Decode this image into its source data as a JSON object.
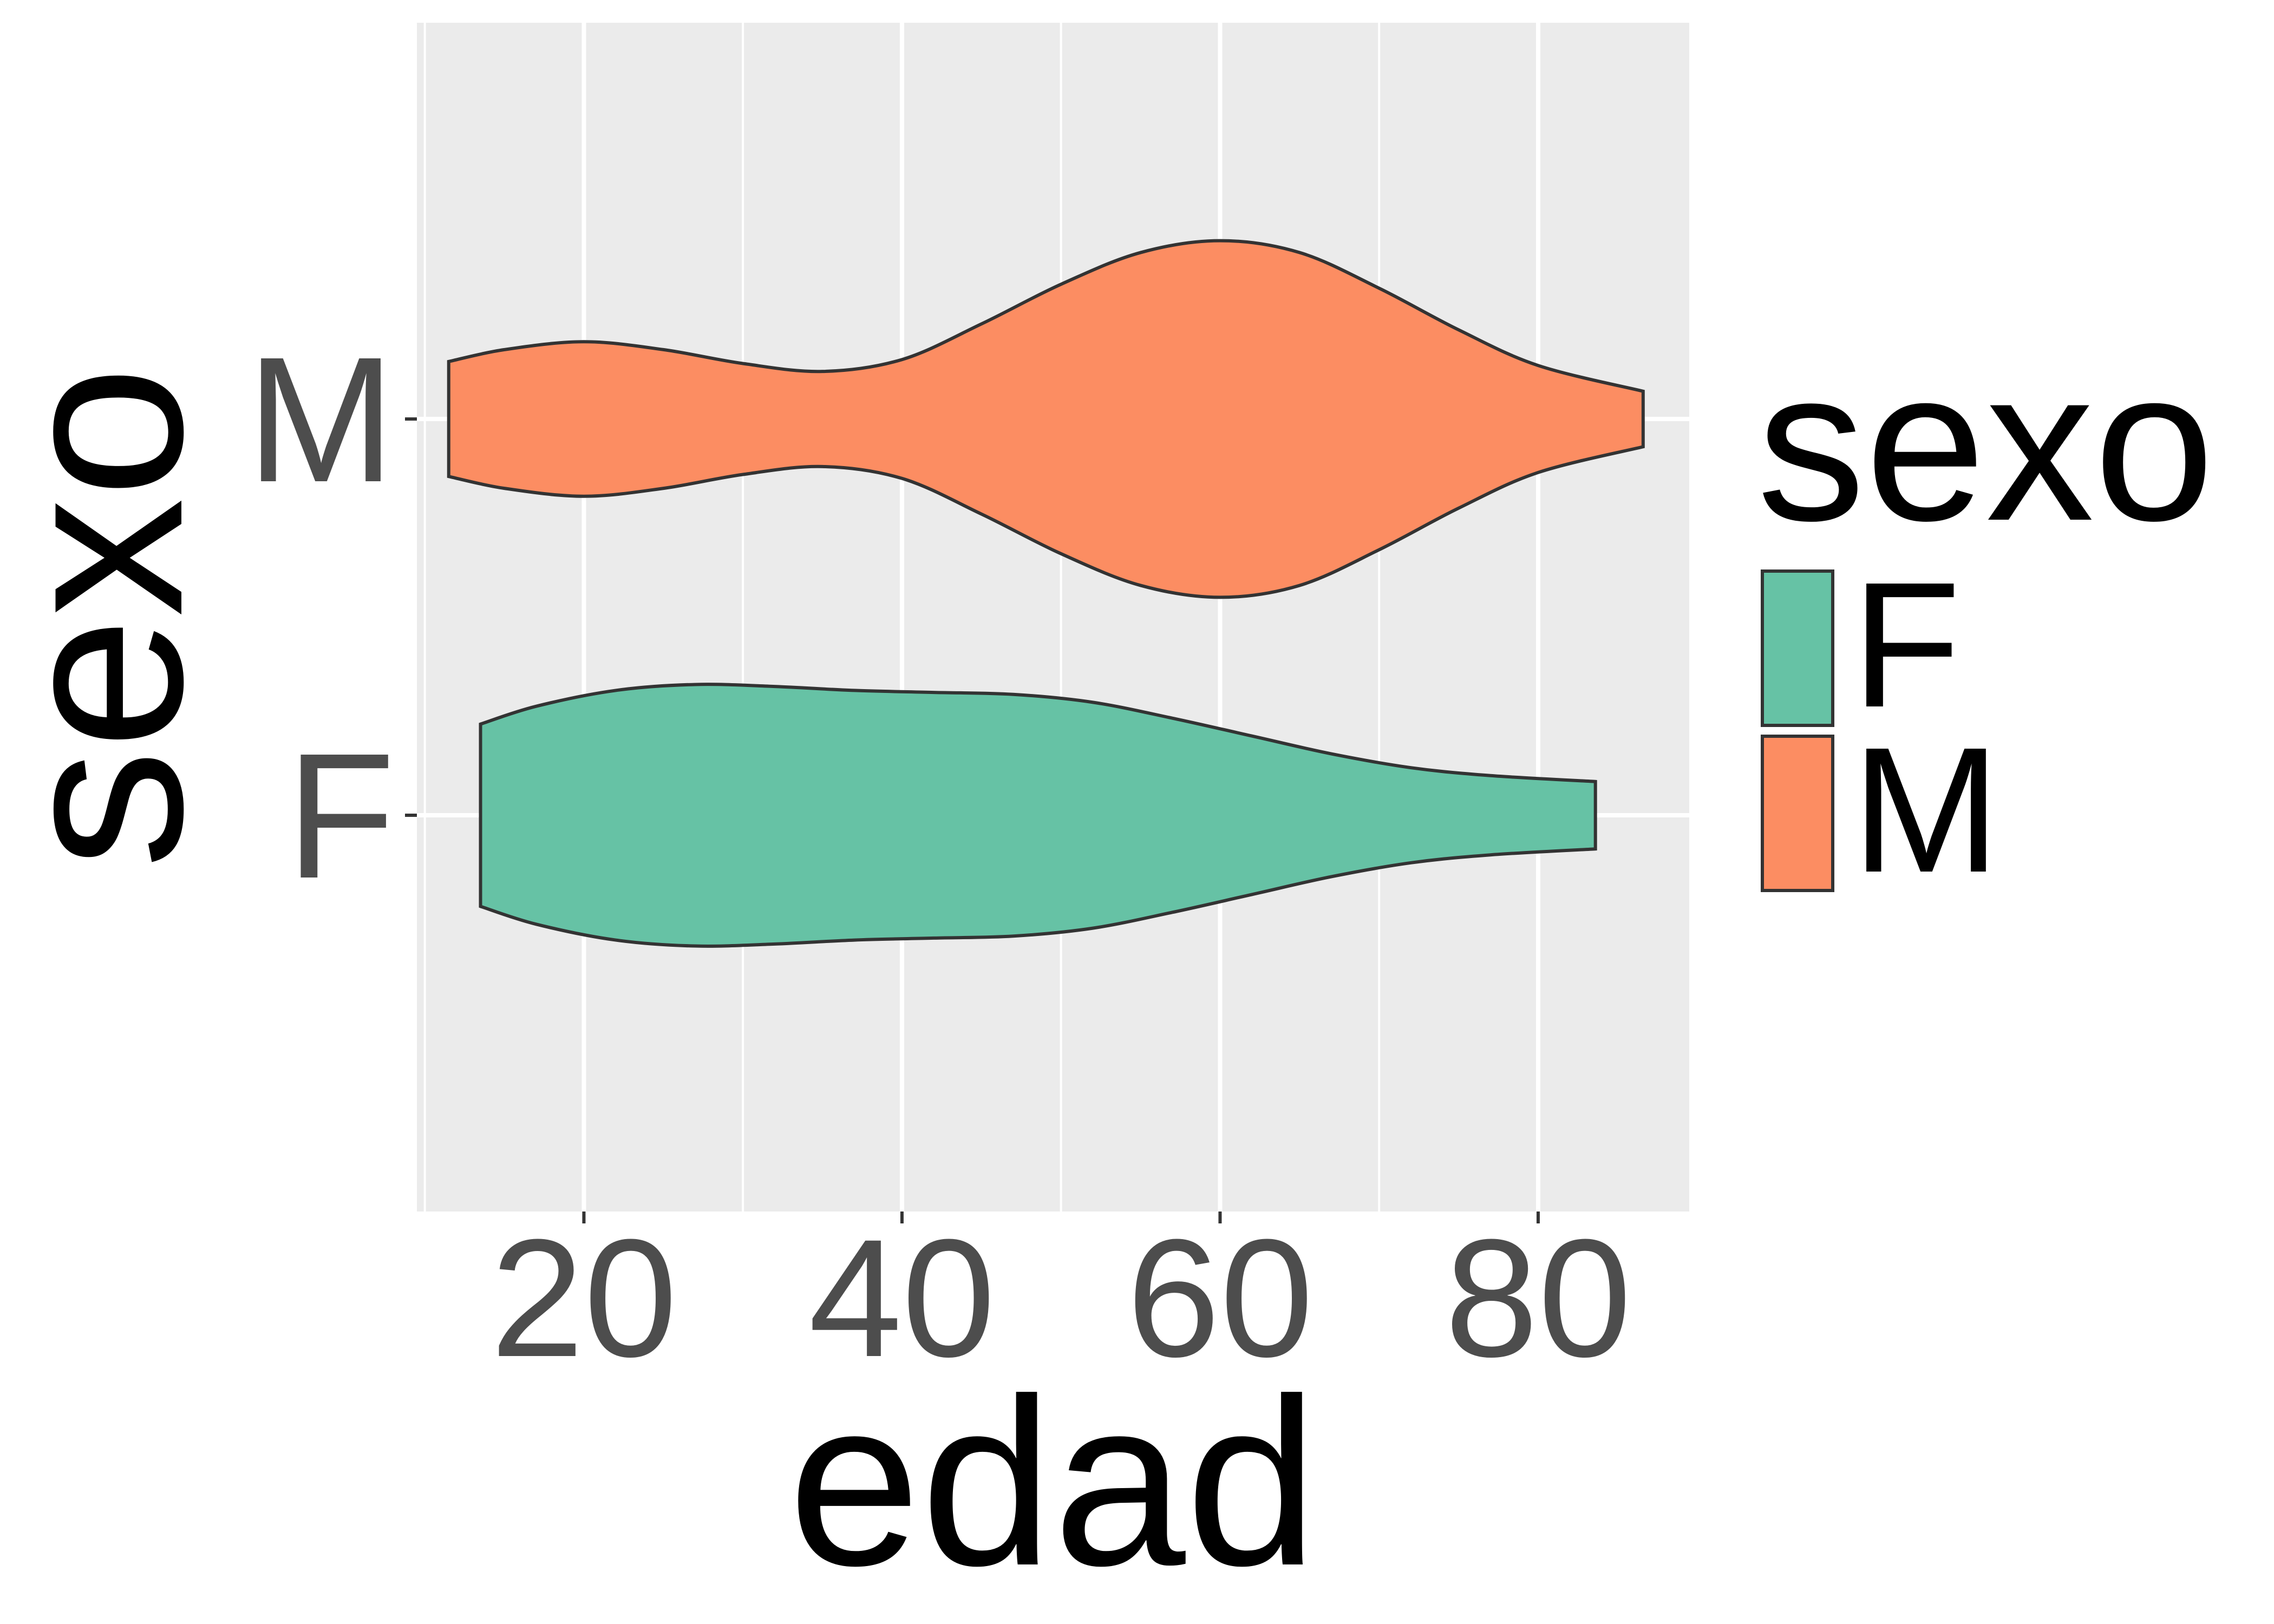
{
  "chart_data": {
    "type": "violin",
    "orientation": "horizontal",
    "xlabel": "edad",
    "ylabel": "sexo",
    "xlim": [
      9.5,
      89.5
    ],
    "x_ticks": [
      20,
      40,
      60,
      80
    ],
    "x_minor_ticks": [
      10,
      30,
      50,
      70
    ],
    "categories": [
      "F",
      "M"
    ],
    "grid": true,
    "legend": {
      "title": "sexo",
      "position": "right",
      "entries": [
        "F",
        "M"
      ]
    },
    "series": [
      {
        "name": "F",
        "color": "#66c2a5",
        "range": [
          13.5,
          83.6
        ],
        "density_profile": [
          [
            13.5,
            0.46
          ],
          [
            17,
            0.55
          ],
          [
            22,
            0.63
          ],
          [
            27,
            0.66
          ],
          [
            32,
            0.65
          ],
          [
            37,
            0.63
          ],
          [
            42,
            0.62
          ],
          [
            47,
            0.61
          ],
          [
            52,
            0.57
          ],
          [
            57,
            0.49
          ],
          [
            62,
            0.4
          ],
          [
            67,
            0.31
          ],
          [
            72,
            0.24
          ],
          [
            77,
            0.2
          ],
          [
            83.6,
            0.17
          ]
        ]
      },
      {
        "name": "M",
        "color": "#fc8d62",
        "range": [
          11.5,
          86.6
        ],
        "density_profile": [
          [
            11.5,
            0.29
          ],
          [
            15,
            0.35
          ],
          [
            20,
            0.39
          ],
          [
            25,
            0.35
          ],
          [
            30,
            0.28
          ],
          [
            35,
            0.24
          ],
          [
            40,
            0.3
          ],
          [
            45,
            0.48
          ],
          [
            50,
            0.68
          ],
          [
            55,
            0.84
          ],
          [
            60,
            0.9
          ],
          [
            65,
            0.84
          ],
          [
            70,
            0.66
          ],
          [
            75,
            0.45
          ],
          [
            80,
            0.27
          ],
          [
            86.6,
            0.14
          ]
        ]
      }
    ]
  }
}
